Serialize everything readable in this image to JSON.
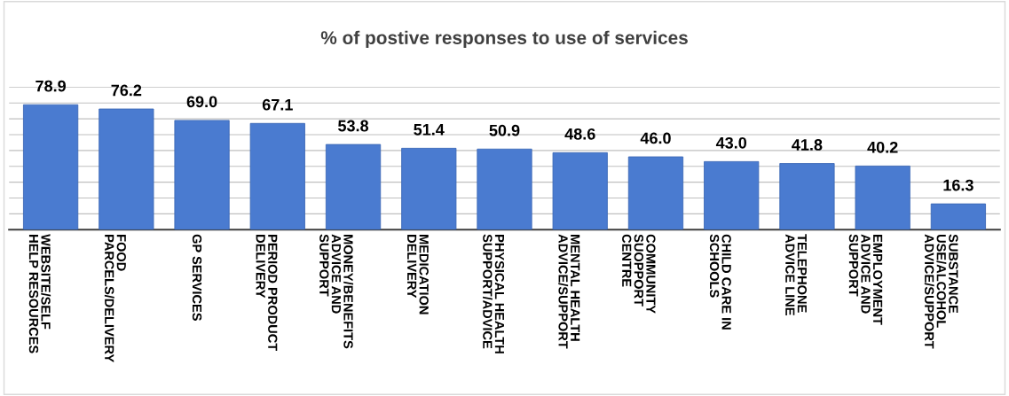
{
  "chart_data": {
    "type": "bar",
    "title": "% of postive responses to use of services",
    "categories": [
      "WEBSITE/SELF\nHELP RESOURCES",
      "FOOD\nPARCELS/DELIVERY",
      "GP SERVICES",
      "PERIOD PRODUCT\nDELIVERY",
      "MONEY/BENEFITS\nADVICE AND\nSUPPORT",
      "MEDICATION\nDELIVERY",
      "PHYSICAL HEALTH\nSUPPORT/ADVICE",
      "MENTAL HEALTH\nADVICE/SUPPORT",
      "COMMUNITY\nSUOPPORT\nCENTRE",
      "CHILD CARE IN\nSCHOOLS",
      "TELEPHONE\nADVICE LINE",
      "EMPLOYMENT\nADVICE AND\nSUPPORT",
      "SUBSTANCE\nUSE/ALCOHOL\nADVICE/SUPPORT"
    ],
    "values": [
      78.9,
      76.2,
      69.0,
      67.1,
      53.8,
      51.4,
      50.9,
      48.6,
      46.0,
      43.0,
      41.8,
      40.2,
      16.3
    ],
    "value_labels": [
      "78.9",
      "76.2",
      "69.0",
      "67.1",
      "53.8",
      "51.4",
      "50.9",
      "48.6",
      "46.0",
      "43.0",
      "41.8",
      "40.2",
      "16.3"
    ],
    "color": "#4a7bd0",
    "ylim": [
      0,
      90
    ],
    "yticks": [
      {
        "value": 0,
        "label": null
      },
      {
        "value": 10,
        "label": null
      },
      {
        "value": 20,
        "label": null
      },
      {
        "value": 30,
        "label": null
      },
      {
        "value": 40,
        "label": null
      },
      {
        "value": 50,
        "label": null
      },
      {
        "value": 60,
        "label": null
      },
      {
        "value": 70,
        "label": null
      },
      {
        "value": 80,
        "label": null
      },
      {
        "value": 90,
        "label": null
      }
    ],
    "tick_labels": "x",
    "grid": "y",
    "legend": false
  }
}
